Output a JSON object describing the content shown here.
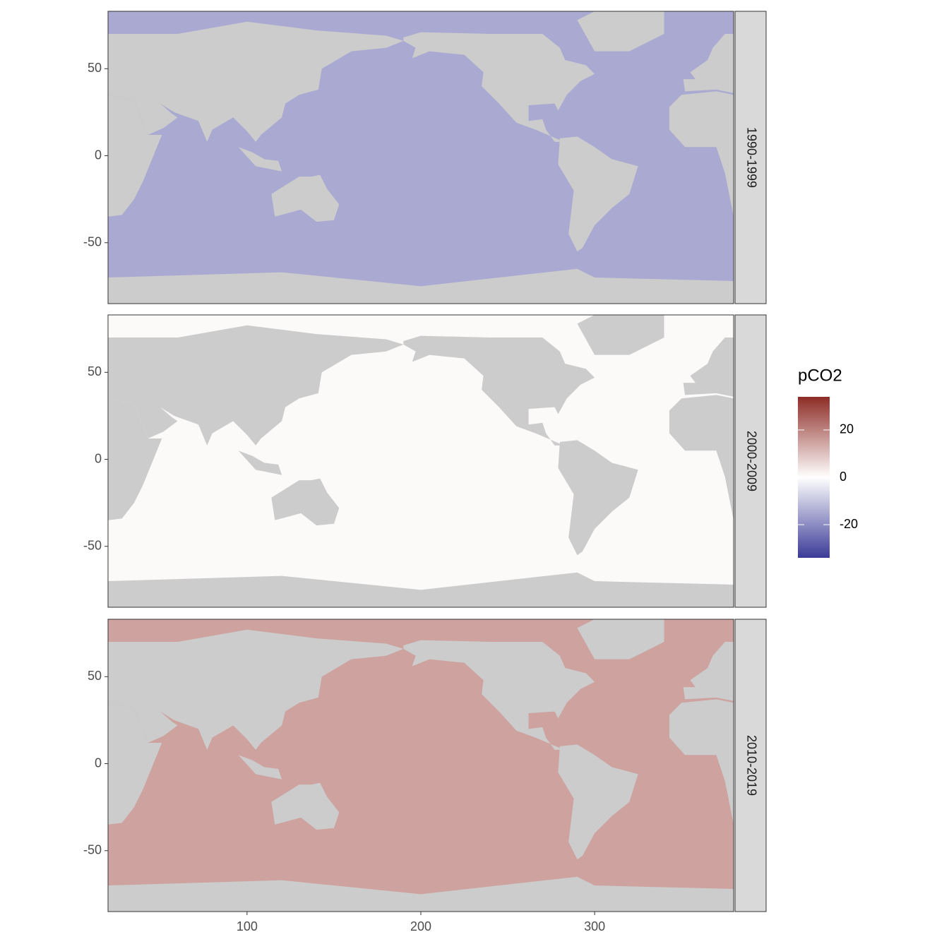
{
  "chart_data": {
    "type": "map",
    "facets": [
      "1990-1999",
      "2000-2009",
      "2010-2019"
    ],
    "values": [
      -15,
      1,
      15
    ],
    "xlim": [
      20,
      380
    ],
    "ylim": [
      -85,
      83
    ],
    "xticks": [
      100,
      200,
      300
    ],
    "yticks": [
      -50,
      0,
      50
    ],
    "land_color": "#cccccc",
    "legend": {
      "title": "pCO2",
      "limits": [
        -34,
        34
      ],
      "ticks": [
        -20,
        0,
        20
      ],
      "colors": [
        "#3b3b98",
        "#ffffff",
        "#8e2c26"
      ]
    }
  }
}
